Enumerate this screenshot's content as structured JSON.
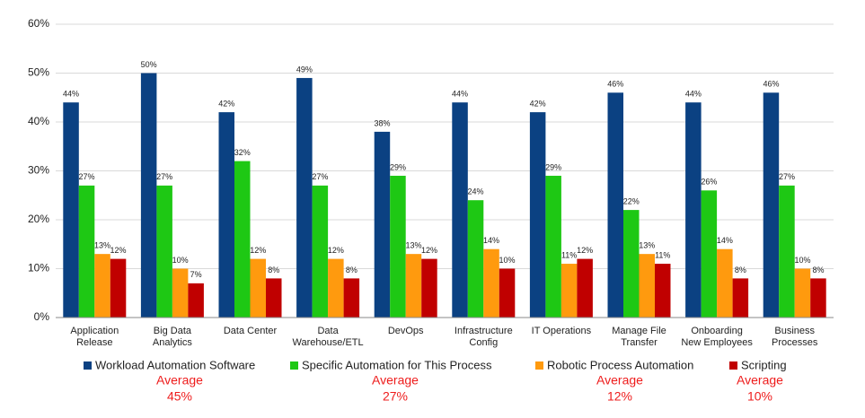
{
  "chart_data": {
    "type": "bar",
    "categories": [
      "Application\nRelease",
      "Big Data\nAnalytics",
      "Data Center",
      "Data\nWarehouse/ETL",
      "DevOps",
      "Infrastructure\nConfig",
      "IT Operations",
      "Manage File\nTransfer",
      "Onboarding\nNew Employees",
      "Business\nProcesses"
    ],
    "series": [
      {
        "name": "Workload Automation Software",
        "color": "#0b4182",
        "values": [
          44,
          50,
          42,
          49,
          38,
          44,
          42,
          46,
          44,
          46
        ],
        "value_labels": [
          "44%",
          "50%",
          "42%",
          "49%",
          "38%",
          "44%",
          "42%",
          "46%",
          "44%",
          "46%"
        ],
        "average_label": "Average",
        "average": "45%"
      },
      {
        "name": "Specific Automation for This Process",
        "color": "#1ec814",
        "values": [
          27,
          27,
          32,
          27,
          29,
          24,
          29,
          22,
          26,
          27
        ],
        "value_labels": [
          "27%",
          "27%",
          "32%",
          "27%",
          "29%",
          "24%",
          "29%",
          "22%",
          "26%",
          "27%"
        ],
        "average_label": "Average",
        "average": "27%"
      },
      {
        "name": "Robotic Process Automation",
        "color": "#ff9a0e",
        "values": [
          13,
          10,
          12,
          12,
          13,
          14,
          11,
          13,
          14,
          10
        ],
        "value_labels": [
          "13%",
          "10%",
          "12%",
          "12%",
          "13%",
          "14%",
          "11%",
          "13%",
          "14%",
          "10%"
        ],
        "average_label": "Average",
        "average": "12%"
      },
      {
        "name": "Scripting",
        "color": "#c00000",
        "values": [
          12,
          7,
          8,
          8,
          12,
          10,
          12,
          11,
          8,
          8
        ],
        "value_labels": [
          "12%",
          "7%",
          "8%",
          "8%",
          "12%",
          "10%",
          "12%",
          "11%",
          "8%",
          "8%"
        ],
        "average_label": "Average",
        "average": "10%"
      }
    ],
    "ylim": [
      0,
      60
    ],
    "yticks": [
      {
        "value": 0,
        "label": "0%"
      },
      {
        "value": 10,
        "label": "10%"
      },
      {
        "value": 20,
        "label": "20%"
      },
      {
        "value": 30,
        "label": "30%"
      },
      {
        "value": 40,
        "label": "40%"
      },
      {
        "value": 50,
        "label": "50%"
      },
      {
        "value": 60,
        "label": "60%"
      }
    ],
    "grid": true,
    "legend": "bottom"
  }
}
